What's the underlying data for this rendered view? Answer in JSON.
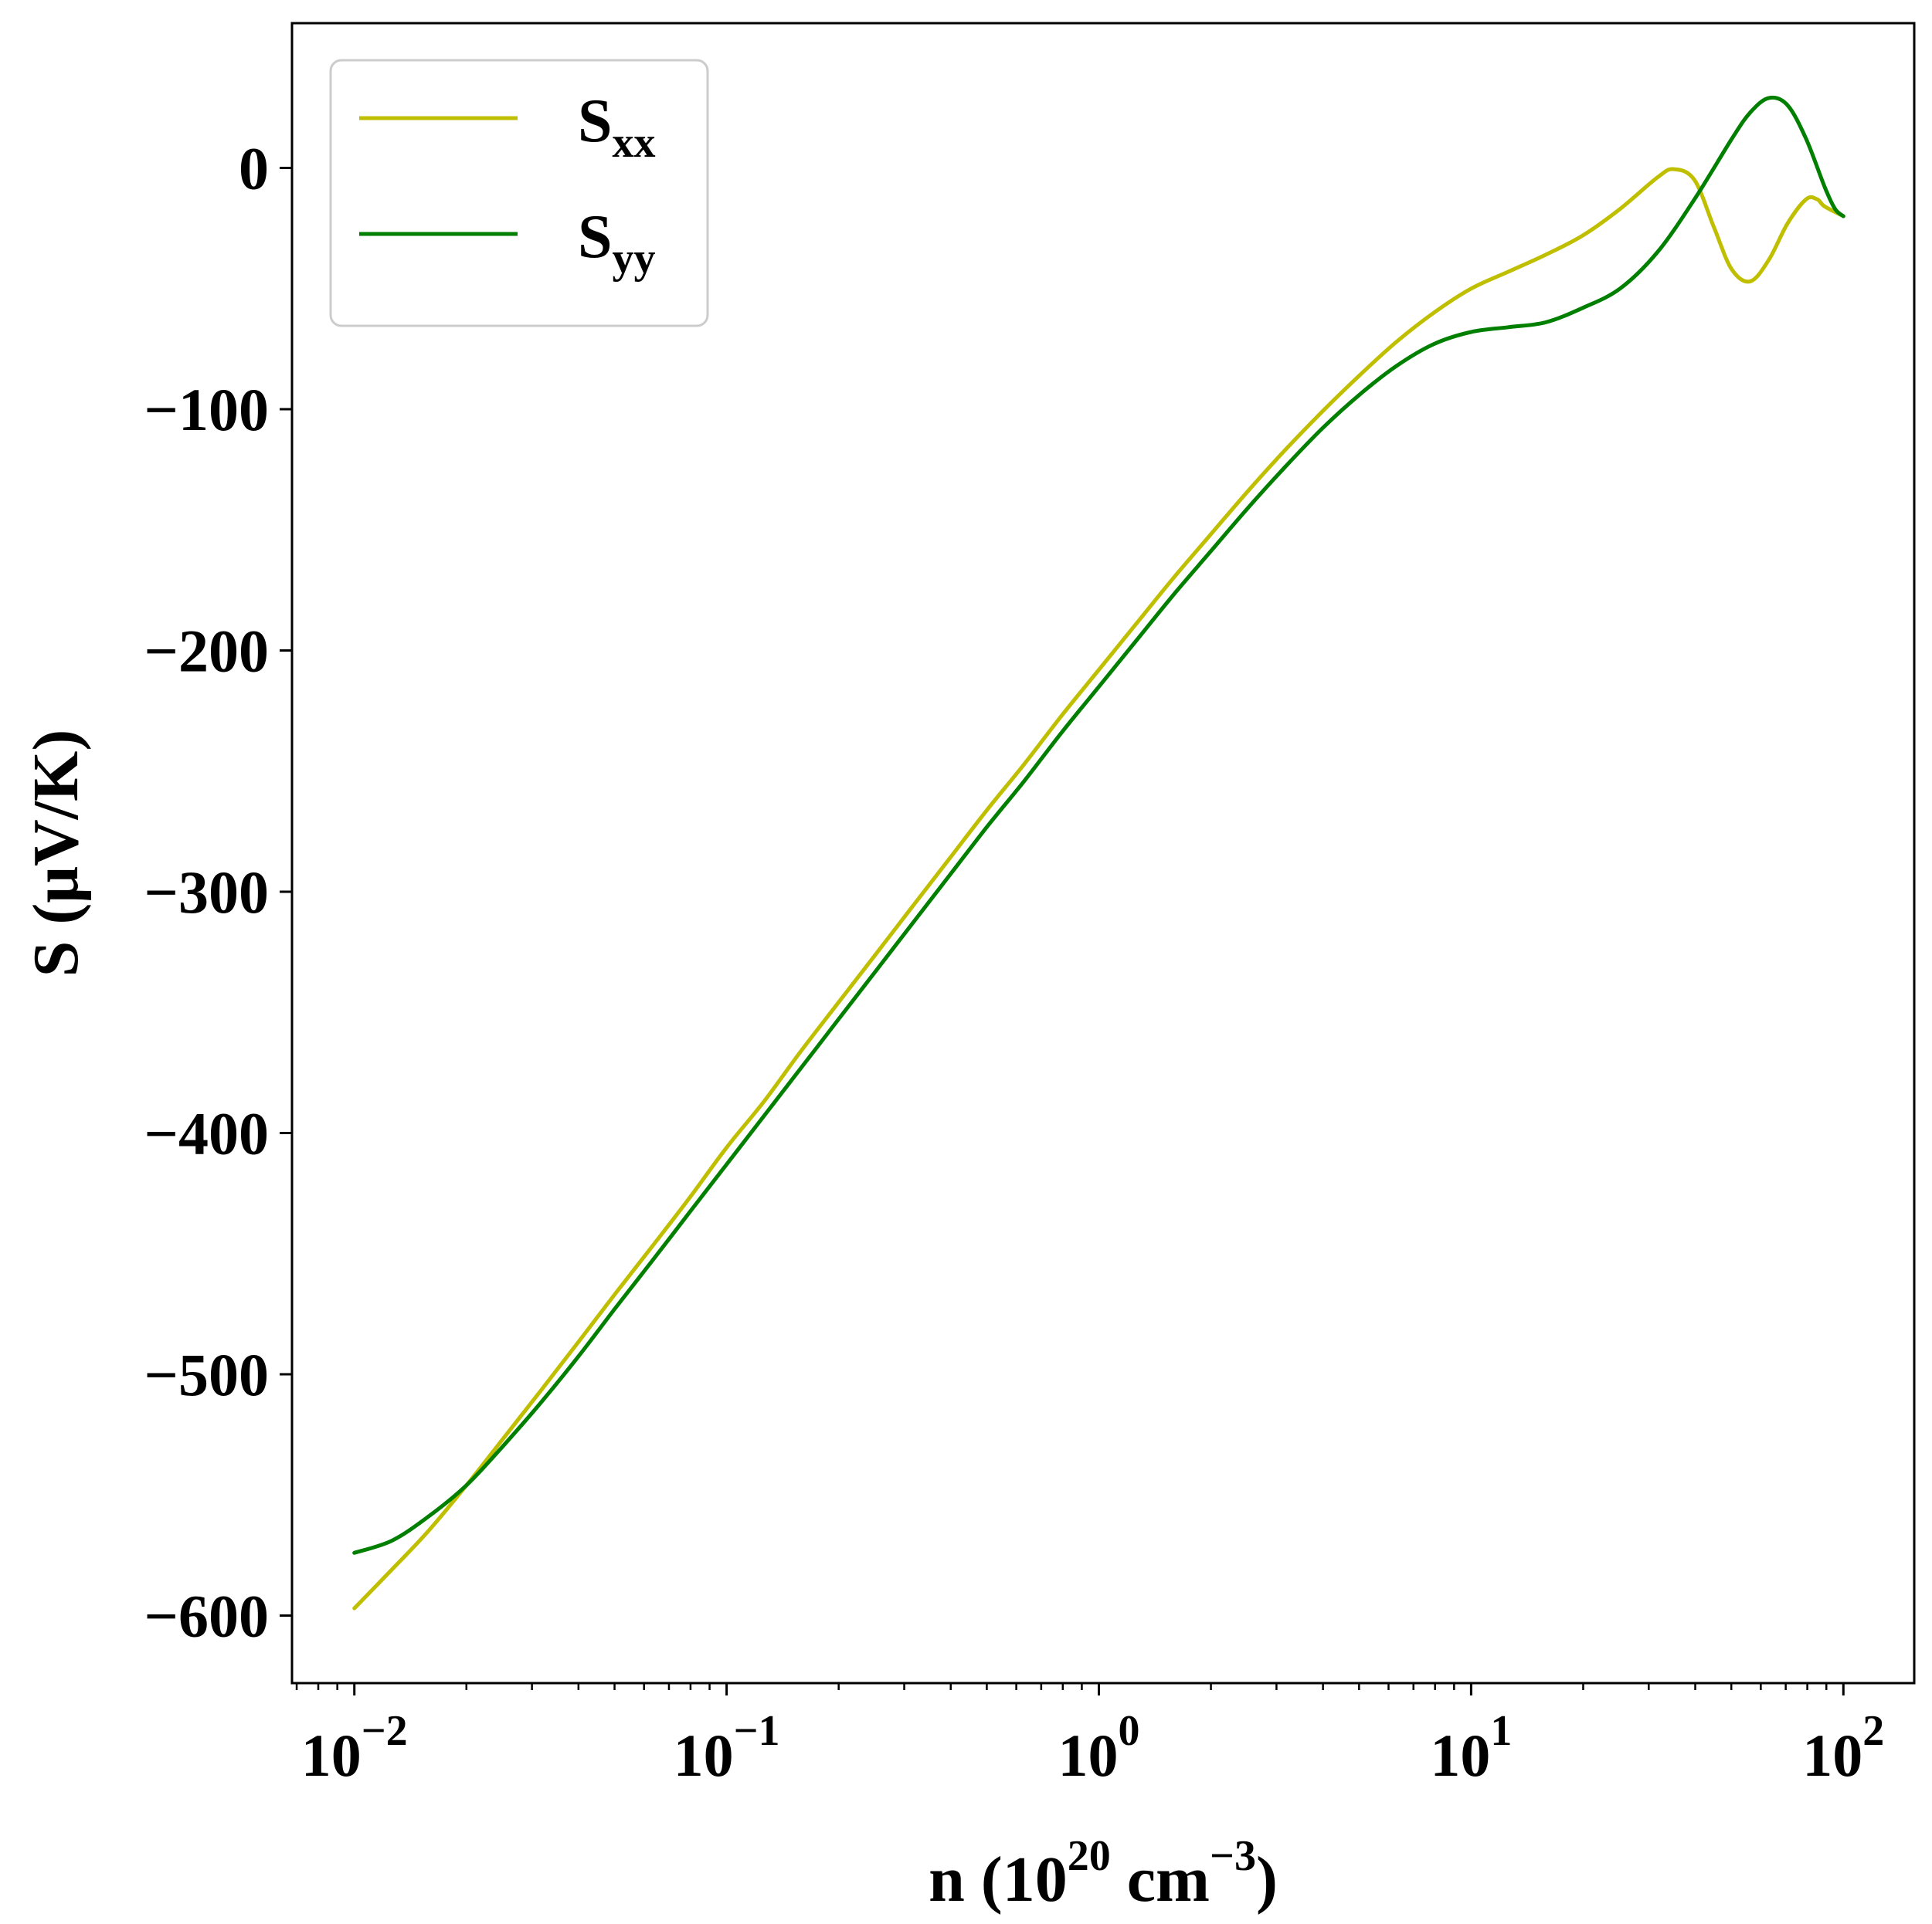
{
  "chart_data": {
    "type": "line",
    "title": "",
    "xlabel": {
      "base": "n (10",
      "sup1": "20",
      "mid": " cm",
      "sup2": "−3",
      "end": ")"
    },
    "ylabel": "S (μV/K)",
    "xscale": "log",
    "xlim": [
      0.0068,
      155
    ],
    "ylim": [
      -628,
      60
    ],
    "grid": false,
    "legend_position": "upper-left",
    "x_ticks": [
      {
        "value": 0.01,
        "base": "10",
        "exp": "−2"
      },
      {
        "value": 0.1,
        "base": "10",
        "exp": "−1"
      },
      {
        "value": 1,
        "base": "10",
        "exp": "0"
      },
      {
        "value": 10,
        "base": "10",
        "exp": "1"
      },
      {
        "value": 100,
        "base": "10",
        "exp": "2"
      }
    ],
    "y_ticks": [
      {
        "value": 0,
        "label": "0"
      },
      {
        "value": -100,
        "label": "−100"
      },
      {
        "value": -200,
        "label": "−200"
      },
      {
        "value": -300,
        "label": "−300"
      },
      {
        "value": -400,
        "label": "−400"
      },
      {
        "value": -500,
        "label": "−500"
      },
      {
        "value": -600,
        "label": "−600"
      }
    ],
    "series": [
      {
        "name": "S",
        "subscript": "xx",
        "color": "#bfbf00",
        "points": [
          [
            0.01,
            -597
          ],
          [
            0.0126,
            -581
          ],
          [
            0.0158,
            -565
          ],
          [
            0.02,
            -546
          ],
          [
            0.025,
            -527
          ],
          [
            0.0316,
            -507
          ],
          [
            0.0398,
            -487
          ],
          [
            0.05,
            -467
          ],
          [
            0.0631,
            -447
          ],
          [
            0.0794,
            -427
          ],
          [
            0.1,
            -406
          ],
          [
            0.1259,
            -387
          ],
          [
            0.1585,
            -366
          ],
          [
            0.1995,
            -346
          ],
          [
            0.2512,
            -326
          ],
          [
            0.3162,
            -306
          ],
          [
            0.3981,
            -286
          ],
          [
            0.5012,
            -266
          ],
          [
            0.631,
            -247
          ],
          [
            0.7943,
            -227
          ],
          [
            1.0,
            -208
          ],
          [
            1.259,
            -189
          ],
          [
            1.585,
            -170
          ],
          [
            1.995,
            -152
          ],
          [
            2.512,
            -134
          ],
          [
            3.162,
            -117
          ],
          [
            3.981,
            -101
          ],
          [
            5.012,
            -86
          ],
          [
            6.31,
            -72
          ],
          [
            7.943,
            -60
          ],
          [
            10.0,
            -50
          ],
          [
            12.59,
            -43
          ],
          [
            15.85,
            -36
          ],
          [
            19.95,
            -28
          ],
          [
            25.12,
            -17
          ],
          [
            31.62,
            -4
          ],
          [
            35.0,
            -0.5
          ],
          [
            39.81,
            -5
          ],
          [
            45.0,
            -25
          ],
          [
            50.12,
            -42
          ],
          [
            56.23,
            -47
          ],
          [
            63.1,
            -38
          ],
          [
            70.79,
            -23
          ],
          [
            79.43,
            -13
          ],
          [
            85.0,
            -13
          ],
          [
            89.13,
            -16
          ],
          [
            100.0,
            -20
          ]
        ]
      },
      {
        "name": "S",
        "subscript": "yy",
        "color": "#007f00",
        "points": [
          [
            0.01,
            -574
          ],
          [
            0.0126,
            -569
          ],
          [
            0.0158,
            -559
          ],
          [
            0.02,
            -546
          ],
          [
            0.025,
            -530
          ],
          [
            0.0316,
            -512
          ],
          [
            0.0398,
            -493
          ],
          [
            0.05,
            -473
          ],
          [
            0.0631,
            -453
          ],
          [
            0.0794,
            -433
          ],
          [
            0.1,
            -413
          ],
          [
            0.1259,
            -393
          ],
          [
            0.1585,
            -373
          ],
          [
            0.1995,
            -353
          ],
          [
            0.2512,
            -333
          ],
          [
            0.3162,
            -313
          ],
          [
            0.3981,
            -293
          ],
          [
            0.5012,
            -273
          ],
          [
            0.631,
            -254
          ],
          [
            0.7943,
            -234
          ],
          [
            1.0,
            -215
          ],
          [
            1.259,
            -196
          ],
          [
            1.585,
            -177
          ],
          [
            1.995,
            -159
          ],
          [
            2.512,
            -141
          ],
          [
            3.162,
            -124
          ],
          [
            3.981,
            -108
          ],
          [
            5.012,
            -94
          ],
          [
            6.31,
            -82
          ],
          [
            7.943,
            -73
          ],
          [
            10.0,
            -68
          ],
          [
            12.59,
            -66
          ],
          [
            15.85,
            -64
          ],
          [
            19.95,
            -58
          ],
          [
            25.12,
            -50
          ],
          [
            31.62,
            -35
          ],
          [
            39.81,
            -13
          ],
          [
            50.12,
            12
          ],
          [
            56.23,
            23
          ],
          [
            63.1,
            29
          ],
          [
            70.79,
            26
          ],
          [
            79.43,
            12
          ],
          [
            89.13,
            -8
          ],
          [
            95.0,
            -17
          ],
          [
            100.0,
            -20
          ]
        ]
      }
    ]
  }
}
